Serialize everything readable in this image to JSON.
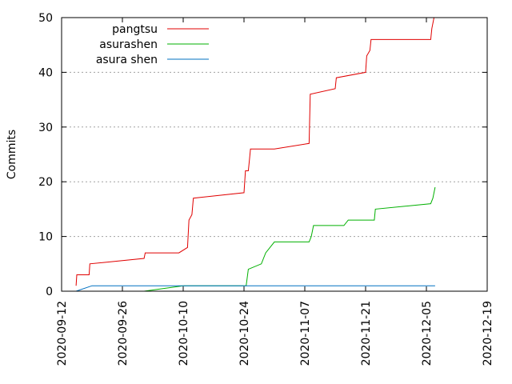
{
  "chart_data": {
    "type": "line",
    "title": "",
    "xlabel": "",
    "ylabel": "Commits",
    "xlim": [
      "2020-09-12",
      "2020-12-19"
    ],
    "ylim": [
      0,
      50
    ],
    "x_ticks": [
      "2020-09-12",
      "2020-09-26",
      "2020-10-10",
      "2020-10-24",
      "2020-11-07",
      "2020-11-21",
      "2020-12-05",
      "2020-12-19"
    ],
    "y_ticks": [
      0,
      10,
      20,
      30,
      40,
      50
    ],
    "grid": "horizontal",
    "legend_position": "top-left",
    "series": [
      {
        "name": "pangtsu",
        "color": "#e00000",
        "points": [
          [
            "2020-09-15T08:00",
            1
          ],
          [
            "2020-09-15T12:00",
            3
          ],
          [
            "2020-09-18T08:00",
            3
          ],
          [
            "2020-09-18T12:00",
            5
          ],
          [
            "2020-10-01T00:00",
            6
          ],
          [
            "2020-10-01T06:00",
            7
          ],
          [
            "2020-10-09T00:00",
            7
          ],
          [
            "2020-10-11T00:00",
            8
          ],
          [
            "2020-10-11T08:00",
            13
          ],
          [
            "2020-10-12T00:00",
            14
          ],
          [
            "2020-10-12T08:00",
            17
          ],
          [
            "2020-10-24T00:00",
            18
          ],
          [
            "2020-10-24T08:00",
            22
          ],
          [
            "2020-10-25T00:00",
            22
          ],
          [
            "2020-10-25T06:00",
            24
          ],
          [
            "2020-10-25T12:00",
            26
          ],
          [
            "2020-10-31T00:00",
            26
          ],
          [
            "2020-11-08T00:00",
            27
          ],
          [
            "2020-11-08T06:00",
            36
          ],
          [
            "2020-11-14T00:00",
            37
          ],
          [
            "2020-11-14T06:00",
            39
          ],
          [
            "2020-11-21T00:00",
            40
          ],
          [
            "2020-11-21T06:00",
            43
          ],
          [
            "2020-11-22T00:00",
            44
          ],
          [
            "2020-11-22T06:00",
            46
          ],
          [
            "2020-12-06T00:00",
            46
          ],
          [
            "2020-12-06T06:00",
            48
          ],
          [
            "2020-12-06T18:00",
            50
          ]
        ]
      },
      {
        "name": "asurashen",
        "color": "#00b000",
        "points": [
          [
            "2020-10-01T00:00",
            0
          ],
          [
            "2020-10-10T00:00",
            1
          ],
          [
            "2020-10-24T12:00",
            1
          ],
          [
            "2020-10-25T00:00",
            4
          ],
          [
            "2020-10-28T00:00",
            5
          ],
          [
            "2020-10-29T00:00",
            7
          ],
          [
            "2020-10-31T00:00",
            9
          ],
          [
            "2020-11-08T00:00",
            9
          ],
          [
            "2020-11-08T12:00",
            10
          ],
          [
            "2020-11-09T00:00",
            12
          ],
          [
            "2020-11-16T00:00",
            12
          ],
          [
            "2020-11-17T00:00",
            13
          ],
          [
            "2020-11-23T00:00",
            13
          ],
          [
            "2020-11-23T06:00",
            15
          ],
          [
            "2020-12-06T00:00",
            16
          ],
          [
            "2020-12-06T12:00",
            17
          ],
          [
            "2020-12-07T00:00",
            19
          ]
        ]
      },
      {
        "name": "asura shen",
        "color": "#0070c0",
        "points": [
          [
            "2020-09-15T08:00",
            0
          ],
          [
            "2020-09-19T00:00",
            1
          ],
          [
            "2020-12-07T00:00",
            1
          ]
        ]
      }
    ]
  }
}
